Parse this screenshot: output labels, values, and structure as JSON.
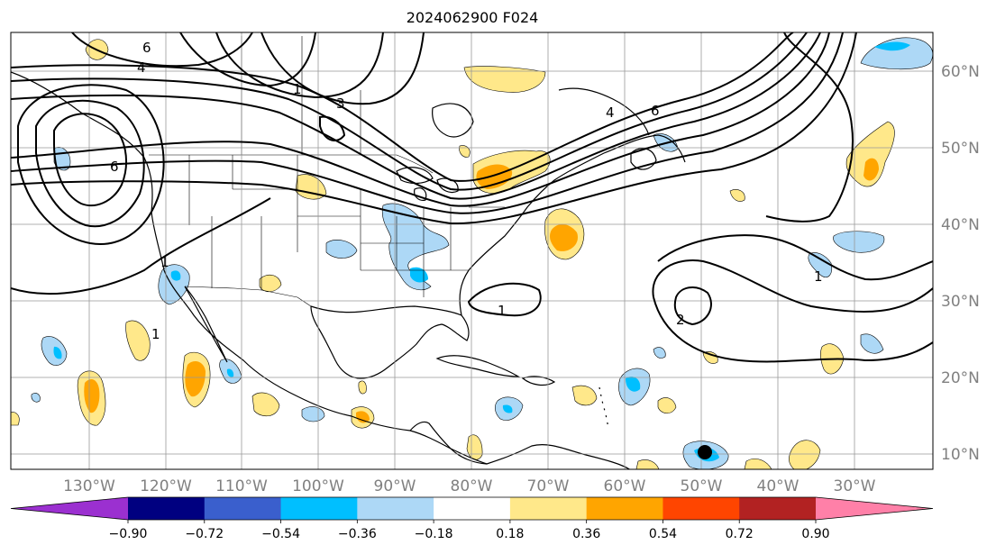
{
  "title": "2024062900 F024",
  "lat_labels": [
    "60°N",
    "50°N",
    "40°N",
    "30°N",
    "20°N",
    "10°N"
  ],
  "lon_labels": [
    "130°W",
    "120°W",
    "110°W",
    "100°W",
    "90°W",
    "80°W",
    "70°W",
    "60°W",
    "50°W",
    "40°W",
    "30°W"
  ],
  "colorbar": {
    "ticks": [
      "−0.90",
      "−0.72",
      "−0.54",
      "−0.36",
      "−0.18",
      "0.18",
      "0.36",
      "0.54",
      "0.72",
      "0.90"
    ],
    "colors": [
      "#9b30d0",
      "#000080",
      "#3a5fcd",
      "#00bfff",
      "#add8f6",
      "#ffffff",
      "#ffe88a",
      "#ffa500",
      "#ff4500",
      "#b22222",
      "#ff80a8"
    ]
  },
  "contour_labels": [
    "6",
    "4",
    "1",
    "3",
    "6",
    "4",
    "6",
    "1",
    "1",
    "1",
    "2",
    "1"
  ],
  "colors": {
    "light_blue": "#add8f6",
    "blue": "#00bfff",
    "yellow": "#ffe88a",
    "orange": "#ffa500",
    "contour": "#000000",
    "grid": "#999999"
  }
}
